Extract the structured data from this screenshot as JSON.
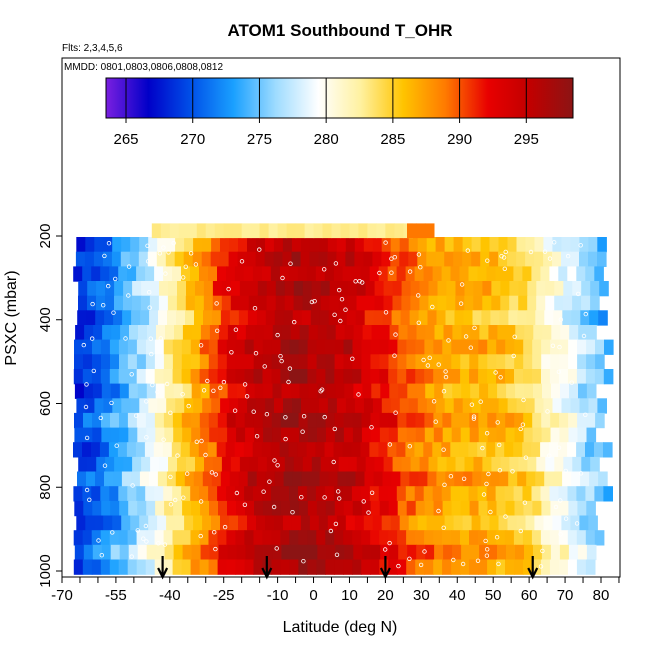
{
  "chart_data": {
    "type": "heatmap",
    "title": "ATOM1 Southbound T_OHR",
    "subtitle_flights": "Flts: 2,3,4,5,6",
    "subtitle_dates": "MMDD: 0801,0803,0806,0808,0812",
    "xlabel": "Latitude (deg N)",
    "ylabel": "PSXC (mbar)",
    "xlim": [
      -70,
      85
    ],
    "ylim": [
      1020,
      140
    ],
    "x_tick_labels": [
      "-70",
      "-55",
      "-40",
      "-25",
      "-10",
      "0",
      "10",
      "20",
      "30",
      "40",
      "50",
      "60",
      "70",
      "80"
    ],
    "y_tick_labels": [
      "200",
      "400",
      "600",
      "800",
      "1000"
    ],
    "colorbar": {
      "min": 263.5,
      "max": 298.5,
      "tick_labels": [
        "265",
        "270",
        "275",
        "280",
        "285",
        "290",
        "295"
      ],
      "colors": [
        "#7a1fe0",
        "#0000c8",
        "#0050e8",
        "#1aa0ff",
        "#9fdcff",
        "#ffffff",
        "#fff1a0",
        "#ffc400",
        "#ff7a00",
        "#e80000",
        "#c00000",
        "#8c1414"
      ]
    },
    "temperature_profile": {
      "latitude": [
        -66,
        -60,
        -52,
        -45,
        -38,
        -30,
        -24,
        -18,
        -12,
        -6,
        0,
        6,
        12,
        18,
        24,
        30,
        36,
        42,
        48,
        54,
        60,
        66,
        72,
        78,
        82
      ],
      "temperature_K": [
        269,
        271,
        275,
        279,
        284,
        289,
        293,
        295,
        296,
        297,
        297,
        296,
        295,
        293,
        291,
        289,
        288,
        287,
        287,
        286,
        285,
        281,
        279,
        276,
        274
      ]
    },
    "pressure_levels_mbar": [
      220,
      255,
      290,
      325,
      360,
      395,
      430,
      465,
      500,
      535,
      570,
      605,
      640,
      675,
      710,
      745,
      780,
      815,
      850,
      885,
      920,
      955,
      990
    ],
    "flight_arrows_latitude": [
      -42,
      -13,
      20,
      61
    ]
  }
}
